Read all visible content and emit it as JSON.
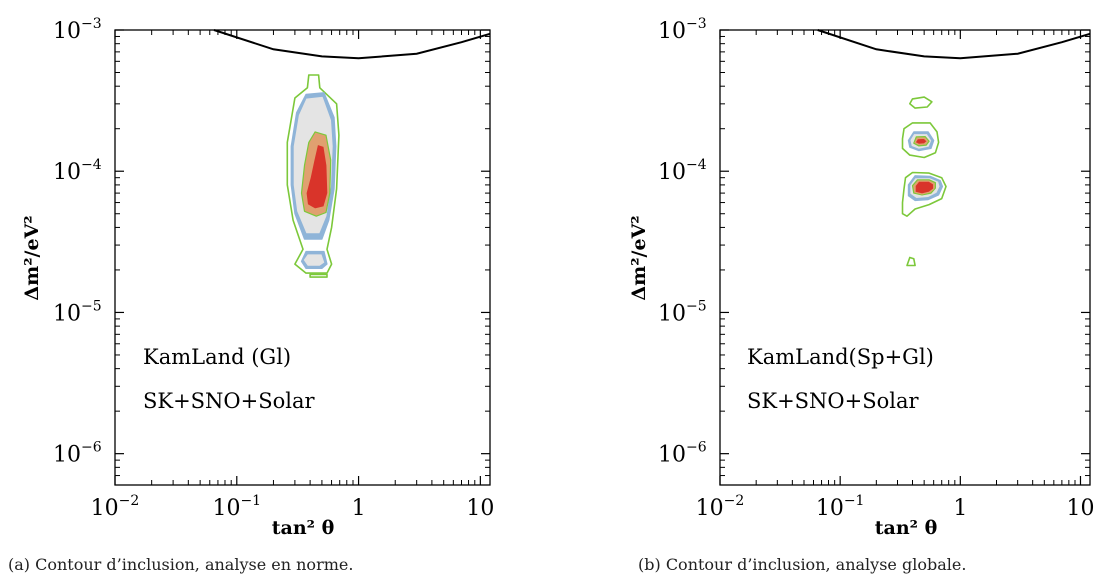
{
  "panels": [
    {
      "legend_lines": [
        "KamLand (Gl)",
        "SK+SNO+Solar"
      ],
      "caption": "(a) Contour d’inclusion, analyse en norme."
    },
    {
      "legend_lines": [
        "KamLand(Sp+Gl)",
        "SK+SNO+Solar"
      ],
      "caption": "(b) Contour d’inclusion, analyse globale."
    }
  ],
  "colors": {
    "green_contour": "#7cc83a",
    "blue_region": "#8fb4d8",
    "grey_region": "#e4e4e4",
    "orange_region": "#e0a070",
    "red_region": "#d9342a",
    "exclusion_curve": "#000000"
  },
  "chart_data": [
    {
      "type": "contour",
      "xlabel": "tan² θ",
      "ylabel": "Δm²/eV²",
      "xscale": "log",
      "yscale": "log",
      "xlim": [
        0.01,
        12
      ],
      "ylim": [
        6e-07,
        0.001
      ],
      "xticks": [
        {
          "base": "10",
          "exp": "−2",
          "value": 0.01
        },
        {
          "base": "10",
          "exp": "−1",
          "value": 0.1
        },
        {
          "base": "1",
          "exp": "",
          "value": 1
        },
        {
          "base": "10",
          "exp": "",
          "value": 10
        }
      ],
      "yticks": [
        {
          "base": "10",
          "exp": "−6",
          "value": 1e-06
        },
        {
          "base": "10",
          "exp": "−5",
          "value": 1e-05
        },
        {
          "base": "10",
          "exp": "−4",
          "value": 0.0001
        },
        {
          "base": "10",
          "exp": "−3",
          "value": 0.001
        }
      ],
      "exclusion_curve": [
        [
          0.065,
          0.001
        ],
        [
          0.2,
          0.00073
        ],
        [
          0.5,
          0.00065
        ],
        [
          1,
          0.00063
        ],
        [
          3,
          0.00068
        ],
        [
          7,
          0.00082
        ],
        [
          12,
          0.00094
        ]
      ],
      "regions": [
        {
          "level": "green",
          "shape": [
            [
              0.39,
              0.00048
            ],
            [
              0.47,
              0.00048
            ],
            [
              0.48,
              0.00039
            ],
            [
              0.66,
              0.0003
            ],
            [
              0.69,
              0.00018
            ],
            [
              0.66,
              7.5e-05
            ],
            [
              0.6,
              4e-05
            ],
            [
              0.55,
              2.8e-05
            ],
            [
              0.6,
              2.2e-05
            ],
            [
              0.55,
              1.9e-05
            ],
            [
              0.37,
              1.9e-05
            ],
            [
              0.3,
              2.2e-05
            ],
            [
              0.35,
              2.8e-05
            ],
            [
              0.29,
              4.5e-05
            ],
            [
              0.26,
              8e-05
            ],
            [
              0.26,
              0.00016
            ],
            [
              0.3,
              0.00033
            ],
            [
              0.38,
              0.00039
            ]
          ]
        },
        {
          "level": "green",
          "shape": [
            [
              0.4,
              1.78e-05
            ],
            [
              0.55,
              1.78e-05
            ],
            [
              0.55,
              1.86e-05
            ],
            [
              0.4,
              1.86e-05
            ]
          ]
        },
        {
          "level": "blue",
          "shape": [
            [
              0.37,
              0.00035
            ],
            [
              0.52,
              0.00036
            ],
            [
              0.63,
              0.00024
            ],
            [
              0.65,
              0.00015
            ],
            [
              0.63,
              7.5e-05
            ],
            [
              0.57,
              4.5e-05
            ],
            [
              0.5,
              3.3e-05
            ],
            [
              0.36,
              3.3e-05
            ],
            [
              0.3,
              5e-05
            ],
            [
              0.28,
              8e-05
            ],
            [
              0.28,
              0.00015
            ],
            [
              0.31,
              0.00026
            ]
          ]
        },
        {
          "level": "blue",
          "shape": [
            [
              0.37,
              2.7e-05
            ],
            [
              0.52,
              2.7e-05
            ],
            [
              0.55,
              2.2e-05
            ],
            [
              0.5,
              2.05e-05
            ],
            [
              0.37,
              2.05e-05
            ],
            [
              0.34,
              2.3e-05
            ]
          ]
        },
        {
          "level": "grey",
          "shape": [
            [
              0.37,
              0.00033
            ],
            [
              0.51,
              0.00034
            ],
            [
              0.6,
              0.00023
            ],
            [
              0.62,
              0.00015
            ],
            [
              0.6,
              7.8e-05
            ],
            [
              0.55,
              4.8e-05
            ],
            [
              0.48,
              3.6e-05
            ],
            [
              0.37,
              3.6e-05
            ],
            [
              0.31,
              5.2e-05
            ],
            [
              0.29,
              8e-05
            ],
            [
              0.29,
              0.00015
            ],
            [
              0.32,
              0.00025
            ]
          ]
        },
        {
          "level": "grey",
          "shape": [
            [
              0.38,
              2.6e-05
            ],
            [
              0.5,
              2.6e-05
            ],
            [
              0.53,
              2.25e-05
            ],
            [
              0.48,
              2.12e-05
            ],
            [
              0.38,
              2.12e-05
            ],
            [
              0.35,
              2.35e-05
            ]
          ]
        },
        {
          "level": "orange",
          "shape": [
            [
              0.44,
              0.00019
            ],
            [
              0.54,
              0.00018
            ],
            [
              0.59,
              0.00012
            ],
            [
              0.58,
              7e-05
            ],
            [
              0.54,
              5.1e-05
            ],
            [
              0.45,
              4.8e-05
            ],
            [
              0.36,
              5.2e-05
            ],
            [
              0.34,
              7e-05
            ],
            [
              0.36,
              0.00011
            ],
            [
              0.39,
              0.00016
            ]
          ]
        },
        {
          "level": "red",
          "shape": [
            [
              0.46,
              0.000155
            ],
            [
              0.52,
              0.00015
            ],
            [
              0.55,
              0.00011
            ],
            [
              0.56,
              7e-05
            ],
            [
              0.52,
              5.6e-05
            ],
            [
              0.44,
              5.4e-05
            ],
            [
              0.38,
              5.8e-05
            ],
            [
              0.37,
              7e-05
            ],
            [
              0.4,
              9e-05
            ],
            [
              0.43,
              0.00012
            ]
          ]
        }
      ]
    },
    {
      "type": "contour",
      "xlabel": "tan² θ",
      "ylabel": "Δm²/eV²",
      "xscale": "log",
      "yscale": "log",
      "xlim": [
        0.01,
        12
      ],
      "ylim": [
        6e-07,
        0.001
      ],
      "xticks": [
        {
          "base": "10",
          "exp": "−2",
          "value": 0.01
        },
        {
          "base": "10",
          "exp": "−1",
          "value": 0.1
        },
        {
          "base": "1",
          "exp": "",
          "value": 1
        },
        {
          "base": "10",
          "exp": "",
          "value": 10
        }
      ],
      "yticks": [
        {
          "base": "10",
          "exp": "−6",
          "value": 1e-06
        },
        {
          "base": "10",
          "exp": "−5",
          "value": 1e-05
        },
        {
          "base": "10",
          "exp": "−4",
          "value": 0.0001
        },
        {
          "base": "10",
          "exp": "−3",
          "value": 0.001
        }
      ],
      "exclusion_curve": [
        [
          0.065,
          0.001
        ],
        [
          0.2,
          0.00073
        ],
        [
          0.5,
          0.00065
        ],
        [
          1,
          0.00063
        ],
        [
          3,
          0.00068
        ],
        [
          7,
          0.00082
        ],
        [
          12,
          0.00094
        ]
      ],
      "regions": [
        {
          "level": "green",
          "shape": [
            [
              0.4,
              0.000325
            ],
            [
              0.5,
              0.000335
            ],
            [
              0.58,
              0.00031
            ],
            [
              0.53,
              0.000285
            ],
            [
              0.42,
              0.00028
            ],
            [
              0.38,
              0.0003
            ]
          ]
        },
        {
          "level": "green",
          "shape": [
            [
              0.4,
              0.00022
            ],
            [
              0.56,
              0.00022
            ],
            [
              0.64,
              0.00019
            ],
            [
              0.66,
              0.00016
            ],
            [
              0.62,
              0.000135
            ],
            [
              0.5,
              0.000125
            ],
            [
              0.38,
              0.00013
            ],
            [
              0.33,
              0.000145
            ],
            [
              0.33,
              0.00017
            ],
            [
              0.34,
              0.0002
            ]
          ]
        },
        {
          "level": "green",
          "shape": [
            [
              0.4,
              9.8e-05
            ],
            [
              0.55,
              9.7e-05
            ],
            [
              0.7,
              9e-05
            ],
            [
              0.76,
              7.8e-05
            ],
            [
              0.7,
              6.4e-05
            ],
            [
              0.55,
              5.8e-05
            ],
            [
              0.42,
              5.4e-05
            ],
            [
              0.36,
              4.8e-05
            ],
            [
              0.33,
              5e-05
            ],
            [
              0.33,
              6e-05
            ],
            [
              0.34,
              7.5e-05
            ],
            [
              0.35,
              9e-05
            ]
          ]
        },
        {
          "level": "green",
          "shape": [
            [
              0.38,
              2.45e-05
            ],
            [
              0.41,
              2.4e-05
            ],
            [
              0.42,
              2.15e-05
            ],
            [
              0.36,
              2.15e-05
            ]
          ]
        },
        {
          "level": "blue",
          "shape": [
            [
              0.41,
              0.00019
            ],
            [
              0.54,
              0.00019
            ],
            [
              0.6,
              0.000165
            ],
            [
              0.57,
              0.000145
            ],
            [
              0.45,
              0.00014
            ],
            [
              0.38,
              0.000148
            ],
            [
              0.37,
              0.000165
            ]
          ]
        },
        {
          "level": "blue",
          "shape": [
            [
              0.42,
              9.3e-05
            ],
            [
              0.56,
              9.2e-05
            ],
            [
              0.68,
              8.6e-05
            ],
            [
              0.71,
              7.8e-05
            ],
            [
              0.66,
              6.8e-05
            ],
            [
              0.54,
              6.3e-05
            ],
            [
              0.42,
              6.2e-05
            ],
            [
              0.37,
              6.7e-05
            ],
            [
              0.37,
              8e-05
            ]
          ]
        },
        {
          "level": "grey",
          "shape": [
            [
              0.41,
              0.000185
            ],
            [
              0.53,
              0.000185
            ],
            [
              0.58,
              0.000165
            ],
            [
              0.55,
              0.000148
            ],
            [
              0.45,
              0.000143
            ],
            [
              0.39,
              0.00015
            ],
            [
              0.38,
              0.000166
            ]
          ]
        },
        {
          "level": "grey",
          "shape": [
            [
              0.42,
              9e-05
            ],
            [
              0.56,
              9e-05
            ],
            [
              0.66,
              8.5e-05
            ],
            [
              0.68,
              7.8e-05
            ],
            [
              0.64,
              7e-05
            ],
            [
              0.54,
              6.5e-05
            ],
            [
              0.43,
              6.4e-05
            ],
            [
              0.38,
              6.9e-05
            ],
            [
              0.38,
              8e-05
            ]
          ]
        },
        {
          "level": "orange",
          "shape": [
            [
              0.43,
              0.000175
            ],
            [
              0.51,
              0.000176
            ],
            [
              0.55,
              0.000163
            ],
            [
              0.52,
              0.000153
            ],
            [
              0.45,
              0.000151
            ],
            [
              0.41,
              0.000158
            ]
          ]
        },
        {
          "level": "orange",
          "shape": [
            [
              0.44,
              8.7e-05
            ],
            [
              0.55,
              8.7e-05
            ],
            [
              0.62,
              8.3e-05
            ],
            [
              0.62,
              7.6e-05
            ],
            [
              0.57,
              7e-05
            ],
            [
              0.48,
              6.8e-05
            ],
            [
              0.41,
              7e-05
            ],
            [
              0.4,
              7.9e-05
            ]
          ]
        },
        {
          "level": "red",
          "shape": [
            [
              0.44,
              0.00017
            ],
            [
              0.5,
              0.000171
            ],
            [
              0.53,
              0.000163
            ],
            [
              0.5,
              0.000156
            ],
            [
              0.45,
              0.000155
            ],
            [
              0.42,
              0.00016
            ]
          ]
        },
        {
          "level": "red",
          "shape": [
            [
              0.45,
              8.5e-05
            ],
            [
              0.55,
              8.5e-05
            ],
            [
              0.6,
              8.1e-05
            ],
            [
              0.6,
              7.5e-05
            ],
            [
              0.55,
              7.1e-05
            ],
            [
              0.48,
              6.9e-05
            ],
            [
              0.42,
              7.1e-05
            ],
            [
              0.42,
              7.9e-05
            ]
          ]
        }
      ]
    }
  ]
}
